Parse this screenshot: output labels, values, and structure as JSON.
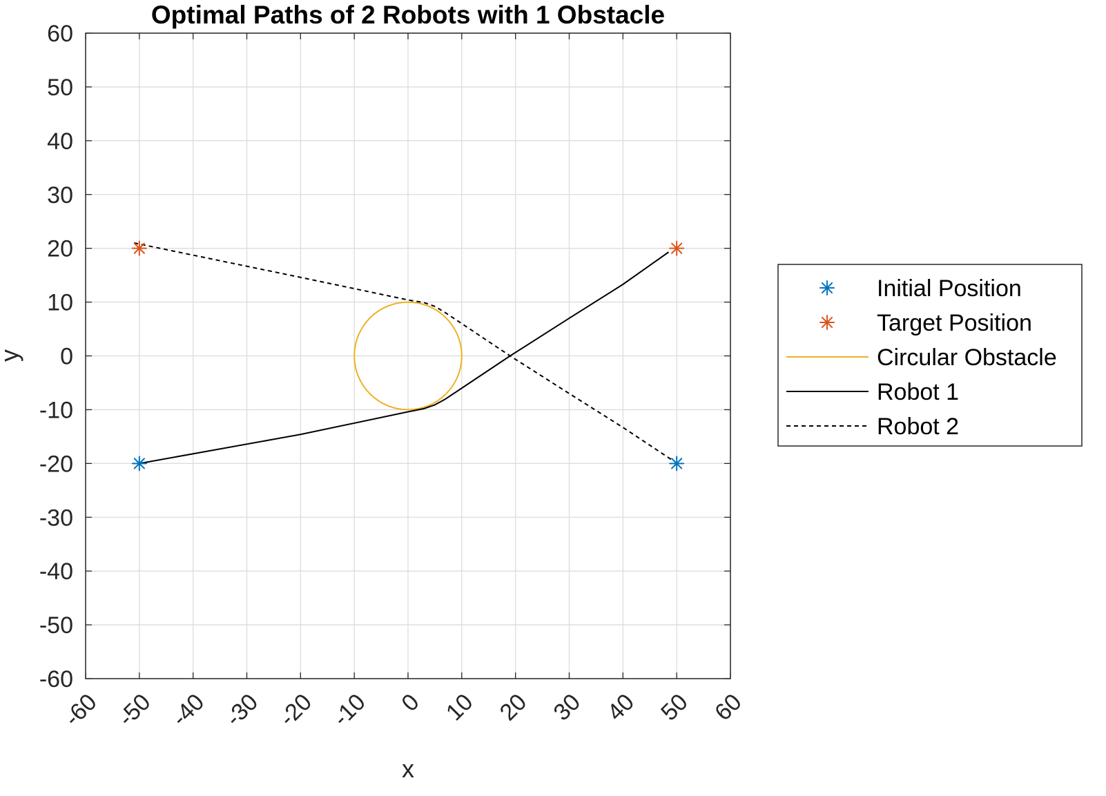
{
  "chart_data": {
    "type": "line",
    "title": "Optimal Paths of 2 Robots with 1 Obstacle",
    "xlabel": "x",
    "ylabel": "y",
    "xlim": [
      -60,
      60
    ],
    "ylim": [
      -60,
      60
    ],
    "x_ticks": [
      -60,
      -50,
      -40,
      -30,
      -20,
      -10,
      0,
      10,
      20,
      30,
      40,
      50,
      60
    ],
    "y_ticks": [
      60,
      50,
      40,
      30,
      20,
      10,
      0,
      -10,
      -20,
      -30,
      -40,
      -50,
      -60
    ],
    "x_tick_labels": [
      "-60",
      "-50",
      "-40",
      "-30",
      "-20",
      "-10",
      "0",
      "10",
      "20",
      "30",
      "40",
      "50",
      "60"
    ],
    "y_tick_labels": [
      "60",
      "50",
      "40",
      "30",
      "20",
      "10",
      "0",
      "-10",
      "-20",
      "-30",
      "-40",
      "-50",
      "-60"
    ],
    "grid": true,
    "legend_position": "outside-right",
    "series": [
      {
        "name": "Initial Position",
        "kind": "marker",
        "marker": "asterisk",
        "color": "#0072BD",
        "points": [
          [
            -50,
            -20
          ],
          [
            50,
            -20
          ]
        ]
      },
      {
        "name": "Target Position",
        "kind": "marker",
        "marker": "asterisk",
        "color": "#D95319",
        "points": [
          [
            -50,
            20
          ],
          [
            50,
            20
          ]
        ]
      },
      {
        "name": "Circular Obstacle",
        "kind": "circle",
        "color": "#EDB120",
        "center": [
          0,
          0
        ],
        "radius": 10
      },
      {
        "name": "Robot 1",
        "kind": "line",
        "dash": "solid",
        "color": "#000000",
        "points": [
          [
            -50,
            -20
          ],
          [
            -20,
            -14.6
          ],
          [
            0,
            -10.4
          ],
          [
            3,
            -9.8
          ],
          [
            5,
            -9.1
          ],
          [
            7,
            -8
          ],
          [
            10,
            -6
          ],
          [
            19,
            0
          ],
          [
            30,
            7
          ],
          [
            40,
            13.3
          ],
          [
            48.5,
            19.3
          ]
        ]
      },
      {
        "name": "Robot 2",
        "kind": "line",
        "dash": "dashed",
        "color": "#000000",
        "points": [
          [
            -51,
            21
          ],
          [
            -20,
            14.6
          ],
          [
            0,
            10.4
          ],
          [
            3,
            9.9
          ],
          [
            5,
            9.2
          ],
          [
            7,
            8
          ],
          [
            10,
            6
          ],
          [
            19,
            0
          ],
          [
            30,
            -7
          ],
          [
            40,
            -13.3
          ],
          [
            49.5,
            -19.6
          ]
        ]
      }
    ]
  },
  "legend": {
    "items": [
      {
        "label": "Initial Position",
        "color": "#0072BD",
        "symbol": "asterisk"
      },
      {
        "label": "Target Position",
        "color": "#D95319",
        "symbol": "asterisk"
      },
      {
        "label": "Circular Obstacle",
        "color": "#EDB120",
        "symbol": "line"
      },
      {
        "label": "Robot 1",
        "color": "#000000",
        "symbol": "line"
      },
      {
        "label": "Robot 2",
        "color": "#000000",
        "symbol": "dashed-line"
      }
    ]
  }
}
